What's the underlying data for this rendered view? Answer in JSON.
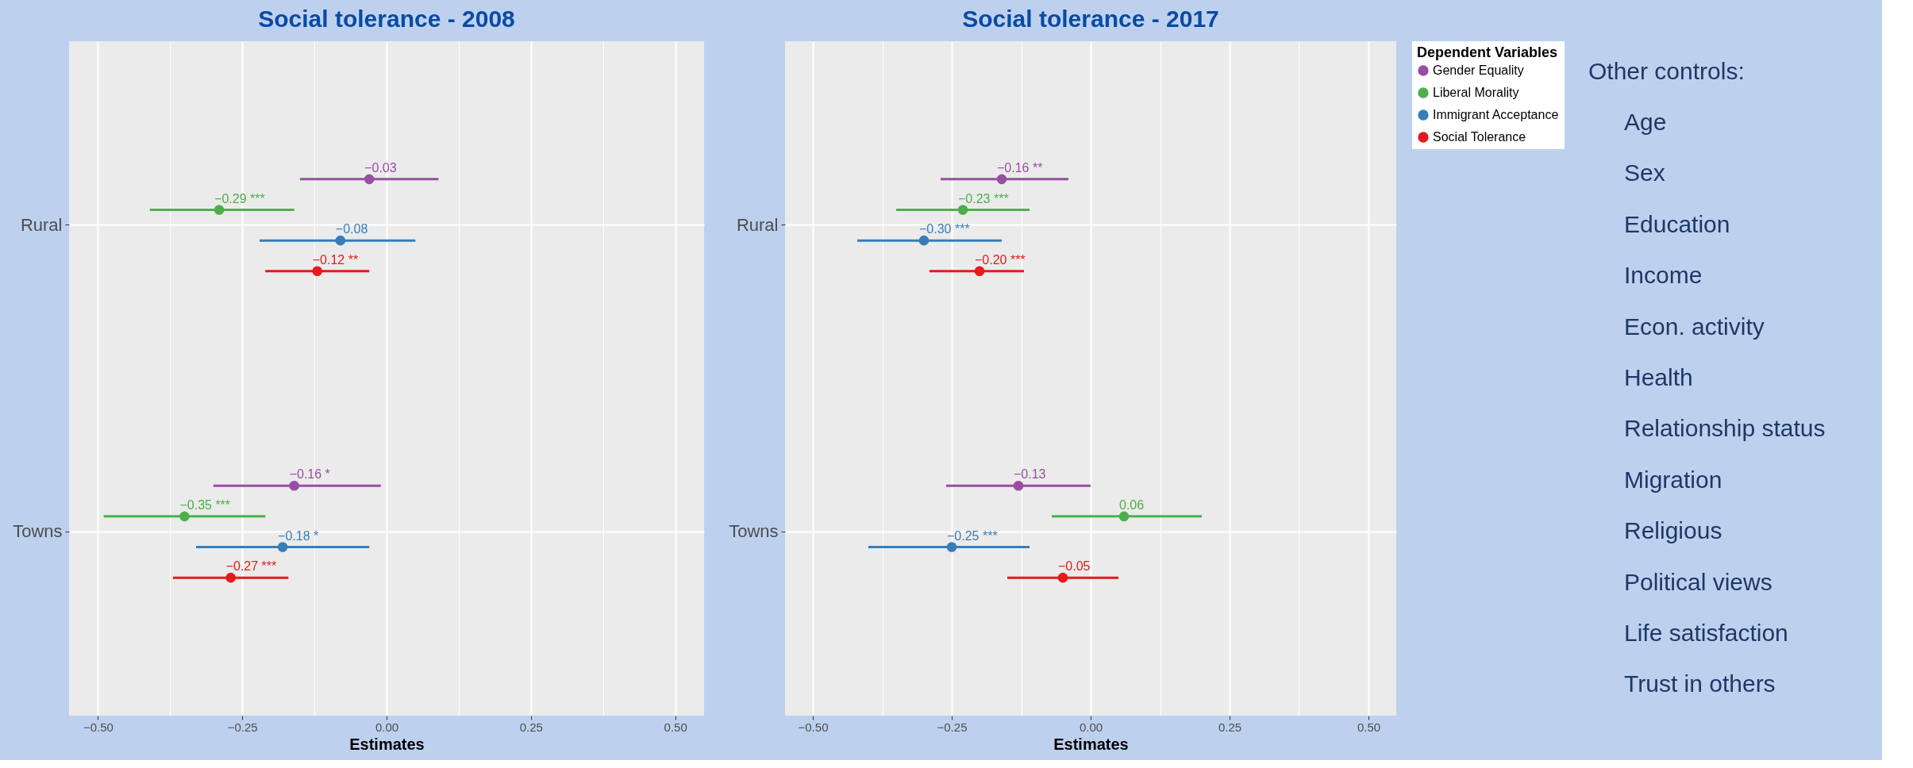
{
  "chart_data": [
    {
      "type": "scatter",
      "title": "Social tolerance - 2008",
      "xlabel": "Estimates",
      "categories": [
        "Rural",
        "Towns"
      ],
      "xlim": [
        -0.55,
        0.55
      ],
      "xticks": [
        {
          "value": -0.5,
          "label": "−0.50"
        },
        {
          "value": -0.375,
          "label": null
        },
        {
          "value": -0.25,
          "label": "−0.25"
        },
        {
          "value": -0.125,
          "label": null
        },
        {
          "value": 0,
          "label": "0.00"
        },
        {
          "value": 0.125,
          "label": null
        },
        {
          "value": 0.25,
          "label": "0.25"
        },
        {
          "value": 0.375,
          "label": null
        },
        {
          "value": 0.5,
          "label": "0.50"
        }
      ],
      "grid": true,
      "legend": false,
      "marker": "circle",
      "orientation": "horizontal",
      "series": [
        {
          "color": "#984ea3",
          "values": [
            -0.03,
            -0.16
          ],
          "errors": [
            [
              -0.15,
              0.09
            ],
            [
              -0.3,
              -0.01
            ]
          ],
          "value_labels": [
            "−0.03",
            "−0.16 *"
          ]
        },
        {
          "color": "#4daf4a",
          "values": [
            -0.29,
            -0.35
          ],
          "errors": [
            [
              -0.41,
              -0.16
            ],
            [
              -0.49,
              -0.21
            ]
          ],
          "value_labels": [
            "−0.29 ***",
            "−0.35 ***"
          ]
        },
        {
          "color": "#377eb8",
          "values": [
            -0.08,
            -0.18
          ],
          "errors": [
            [
              -0.22,
              0.05
            ],
            [
              -0.33,
              -0.03
            ]
          ],
          "value_labels": [
            "−0.08",
            "−0.18 *"
          ]
        },
        {
          "color": "#e41a1c",
          "values": [
            -0.12,
            -0.27
          ],
          "errors": [
            [
              -0.21,
              -0.03
            ],
            [
              -0.37,
              -0.17
            ]
          ],
          "value_labels": [
            "−0.12 **",
            "−0.27 ***"
          ]
        }
      ]
    },
    {
      "type": "scatter",
      "title": "Social tolerance - 2017",
      "xlabel": "Estimates",
      "legend_title": "Dependent Variables",
      "categories": [
        "Rural",
        "Towns"
      ],
      "xlim": [
        -0.55,
        0.55
      ],
      "xticks": [
        {
          "value": -0.5,
          "label": "−0.50"
        },
        {
          "value": -0.375,
          "label": null
        },
        {
          "value": -0.25,
          "label": "−0.25"
        },
        {
          "value": -0.125,
          "label": null
        },
        {
          "value": 0,
          "label": "0.00"
        },
        {
          "value": 0.125,
          "label": null
        },
        {
          "value": 0.25,
          "label": "0.25"
        },
        {
          "value": 0.375,
          "label": null
        },
        {
          "value": 0.5,
          "label": "0.50"
        }
      ],
      "grid": true,
      "legend": "right",
      "marker": "circle",
      "orientation": "horizontal",
      "series": [
        {
          "name": "Gender Equality",
          "color": "#984ea3",
          "values": [
            -0.16,
            -0.13
          ],
          "errors": [
            [
              -0.27,
              -0.04
            ],
            [
              -0.26,
              0.0
            ]
          ],
          "value_labels": [
            "−0.16 **",
            "−0.13"
          ]
        },
        {
          "name": "Liberal Morality",
          "color": "#4daf4a",
          "values": [
            -0.23,
            0.06
          ],
          "errors": [
            [
              -0.35,
              -0.11
            ],
            [
              -0.07,
              0.2
            ]
          ],
          "value_labels": [
            "−0.23 ***",
            "0.06"
          ]
        },
        {
          "name": "Immigrant Acceptance",
          "color": "#377eb8",
          "values": [
            -0.3,
            -0.25
          ],
          "errors": [
            [
              -0.42,
              -0.16
            ],
            [
              -0.4,
              -0.11
            ]
          ],
          "value_labels": [
            "−0.30 ***",
            "−0.25 ***"
          ]
        },
        {
          "name": "Social Tolerance",
          "color": "#e41a1c",
          "values": [
            -0.2,
            -0.05
          ],
          "errors": [
            [
              -0.29,
              -0.12
            ],
            [
              -0.15,
              0.05
            ]
          ],
          "value_labels": [
            "−0.20 ***",
            "−0.05"
          ]
        }
      ]
    },
    {
      "type": "other",
      "title": "Other controls:",
      "annotations": [
        "Age",
        "Sex",
        "Education",
        "Income",
        "Econ. activity",
        "Health",
        "Relationship status",
        "Migration",
        "Religious",
        "Political views",
        "Life satisfaction",
        "Trust in others"
      ]
    }
  ]
}
